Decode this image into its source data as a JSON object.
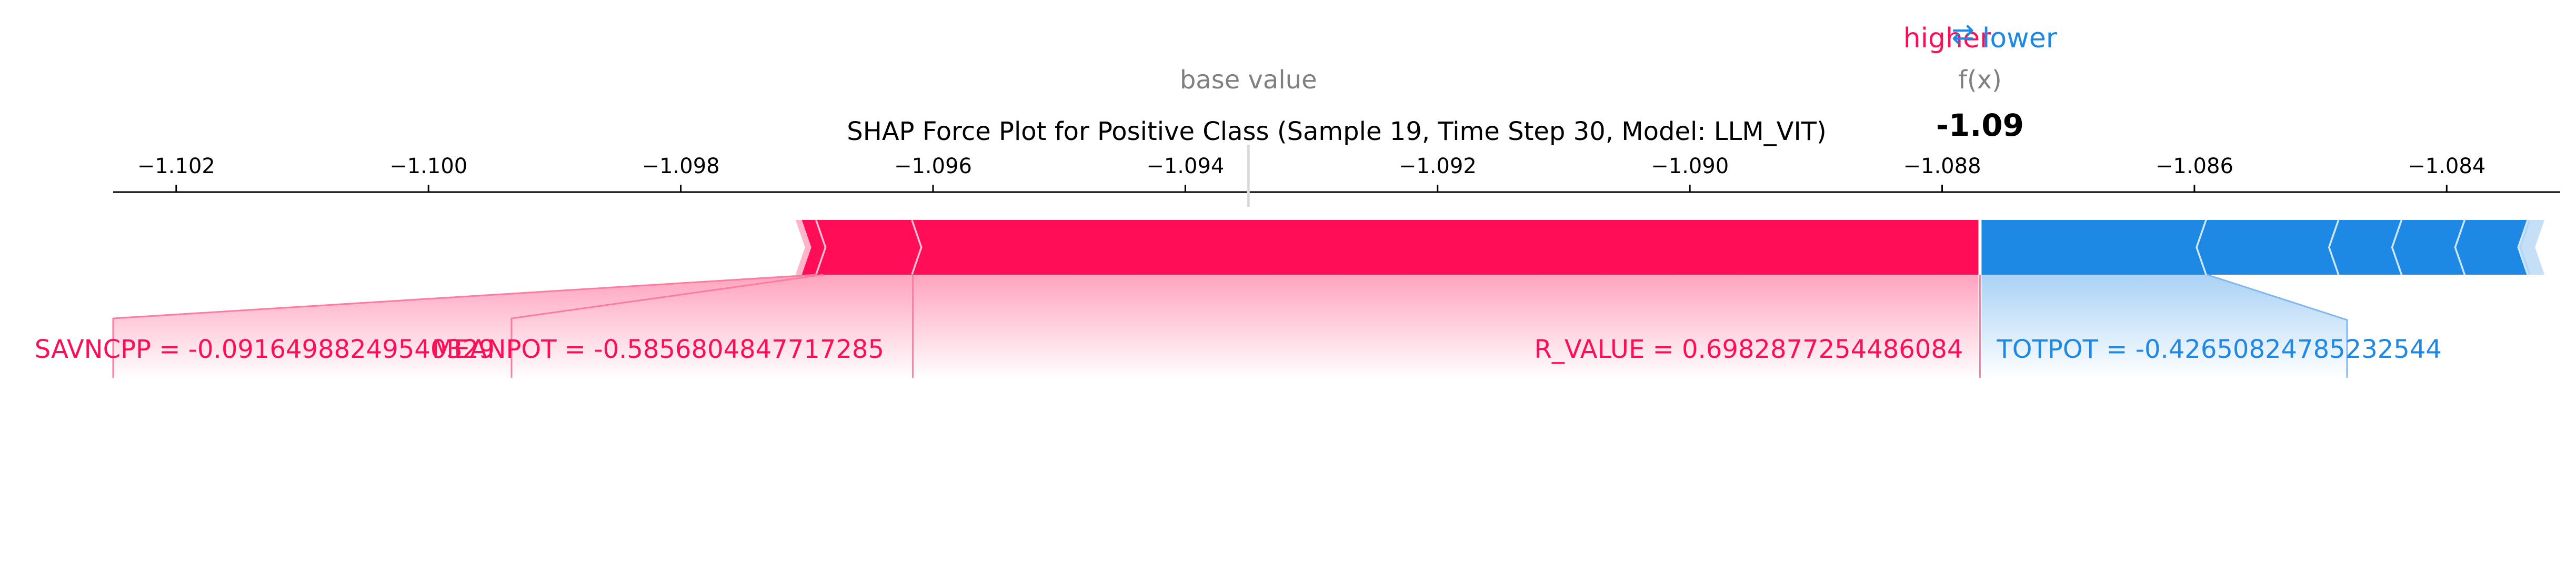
{
  "chart_data": {
    "type": "shap-force",
    "title": "SHAP Force Plot for Positive Class (Sample 19, Time Step 30, Model: LLM_VIT)",
    "legend": {
      "higher": "higher",
      "lower": "lower",
      "arrow": "⇄"
    },
    "base_value_label": "base value",
    "fx_label": "f(x)",
    "fx_value_text": "-1.09",
    "axis": {
      "min": -1.1025,
      "max": -1.0831,
      "ticks": [
        {
          "value": -1.102,
          "label": "−1.102"
        },
        {
          "value": -1.1,
          "label": "−1.100"
        },
        {
          "value": -1.098,
          "label": "−1.098"
        },
        {
          "value": -1.096,
          "label": "−1.096"
        },
        {
          "value": -1.094,
          "label": "−1.094"
        },
        {
          "value": -1.092,
          "label": "−1.092"
        },
        {
          "value": -1.09,
          "label": "−1.090"
        },
        {
          "value": -1.088,
          "label": "−1.088"
        },
        {
          "value": -1.086,
          "label": "−1.086"
        },
        {
          "value": -1.084,
          "label": "−1.084"
        }
      ]
    },
    "base_value": -1.0935,
    "fx_value": -1.0877,
    "positive_segments": [
      {
        "start": -1.09704,
        "end": -1.09692,
        "label": ""
      },
      {
        "start": -1.09692,
        "end": -1.09616,
        "label": "MEANPOT = -0.5856804847717285"
      },
      {
        "start": -1.09616,
        "end": -1.0877,
        "label": "R_VALUE = 0.6982877254486084"
      }
    ],
    "negative_segments": [
      {
        "start": -1.0877,
        "end": -1.0859,
        "label": "TOTPOT = -0.42650824785232544"
      },
      {
        "start": -1.0859,
        "end": -1.08485,
        "label": ""
      },
      {
        "start": -1.08485,
        "end": -1.08435,
        "label": ""
      },
      {
        "start": -1.08435,
        "end": -1.08385,
        "label": ""
      },
      {
        "start": -1.08385,
        "end": -1.08335,
        "label": ""
      }
    ],
    "positive_tail_label": "SAVNCPP = -0.09164988249540329",
    "colors": {
      "positive": "#ff0d57",
      "negative": "#1e88e5",
      "axis_gray": "#808080"
    }
  }
}
